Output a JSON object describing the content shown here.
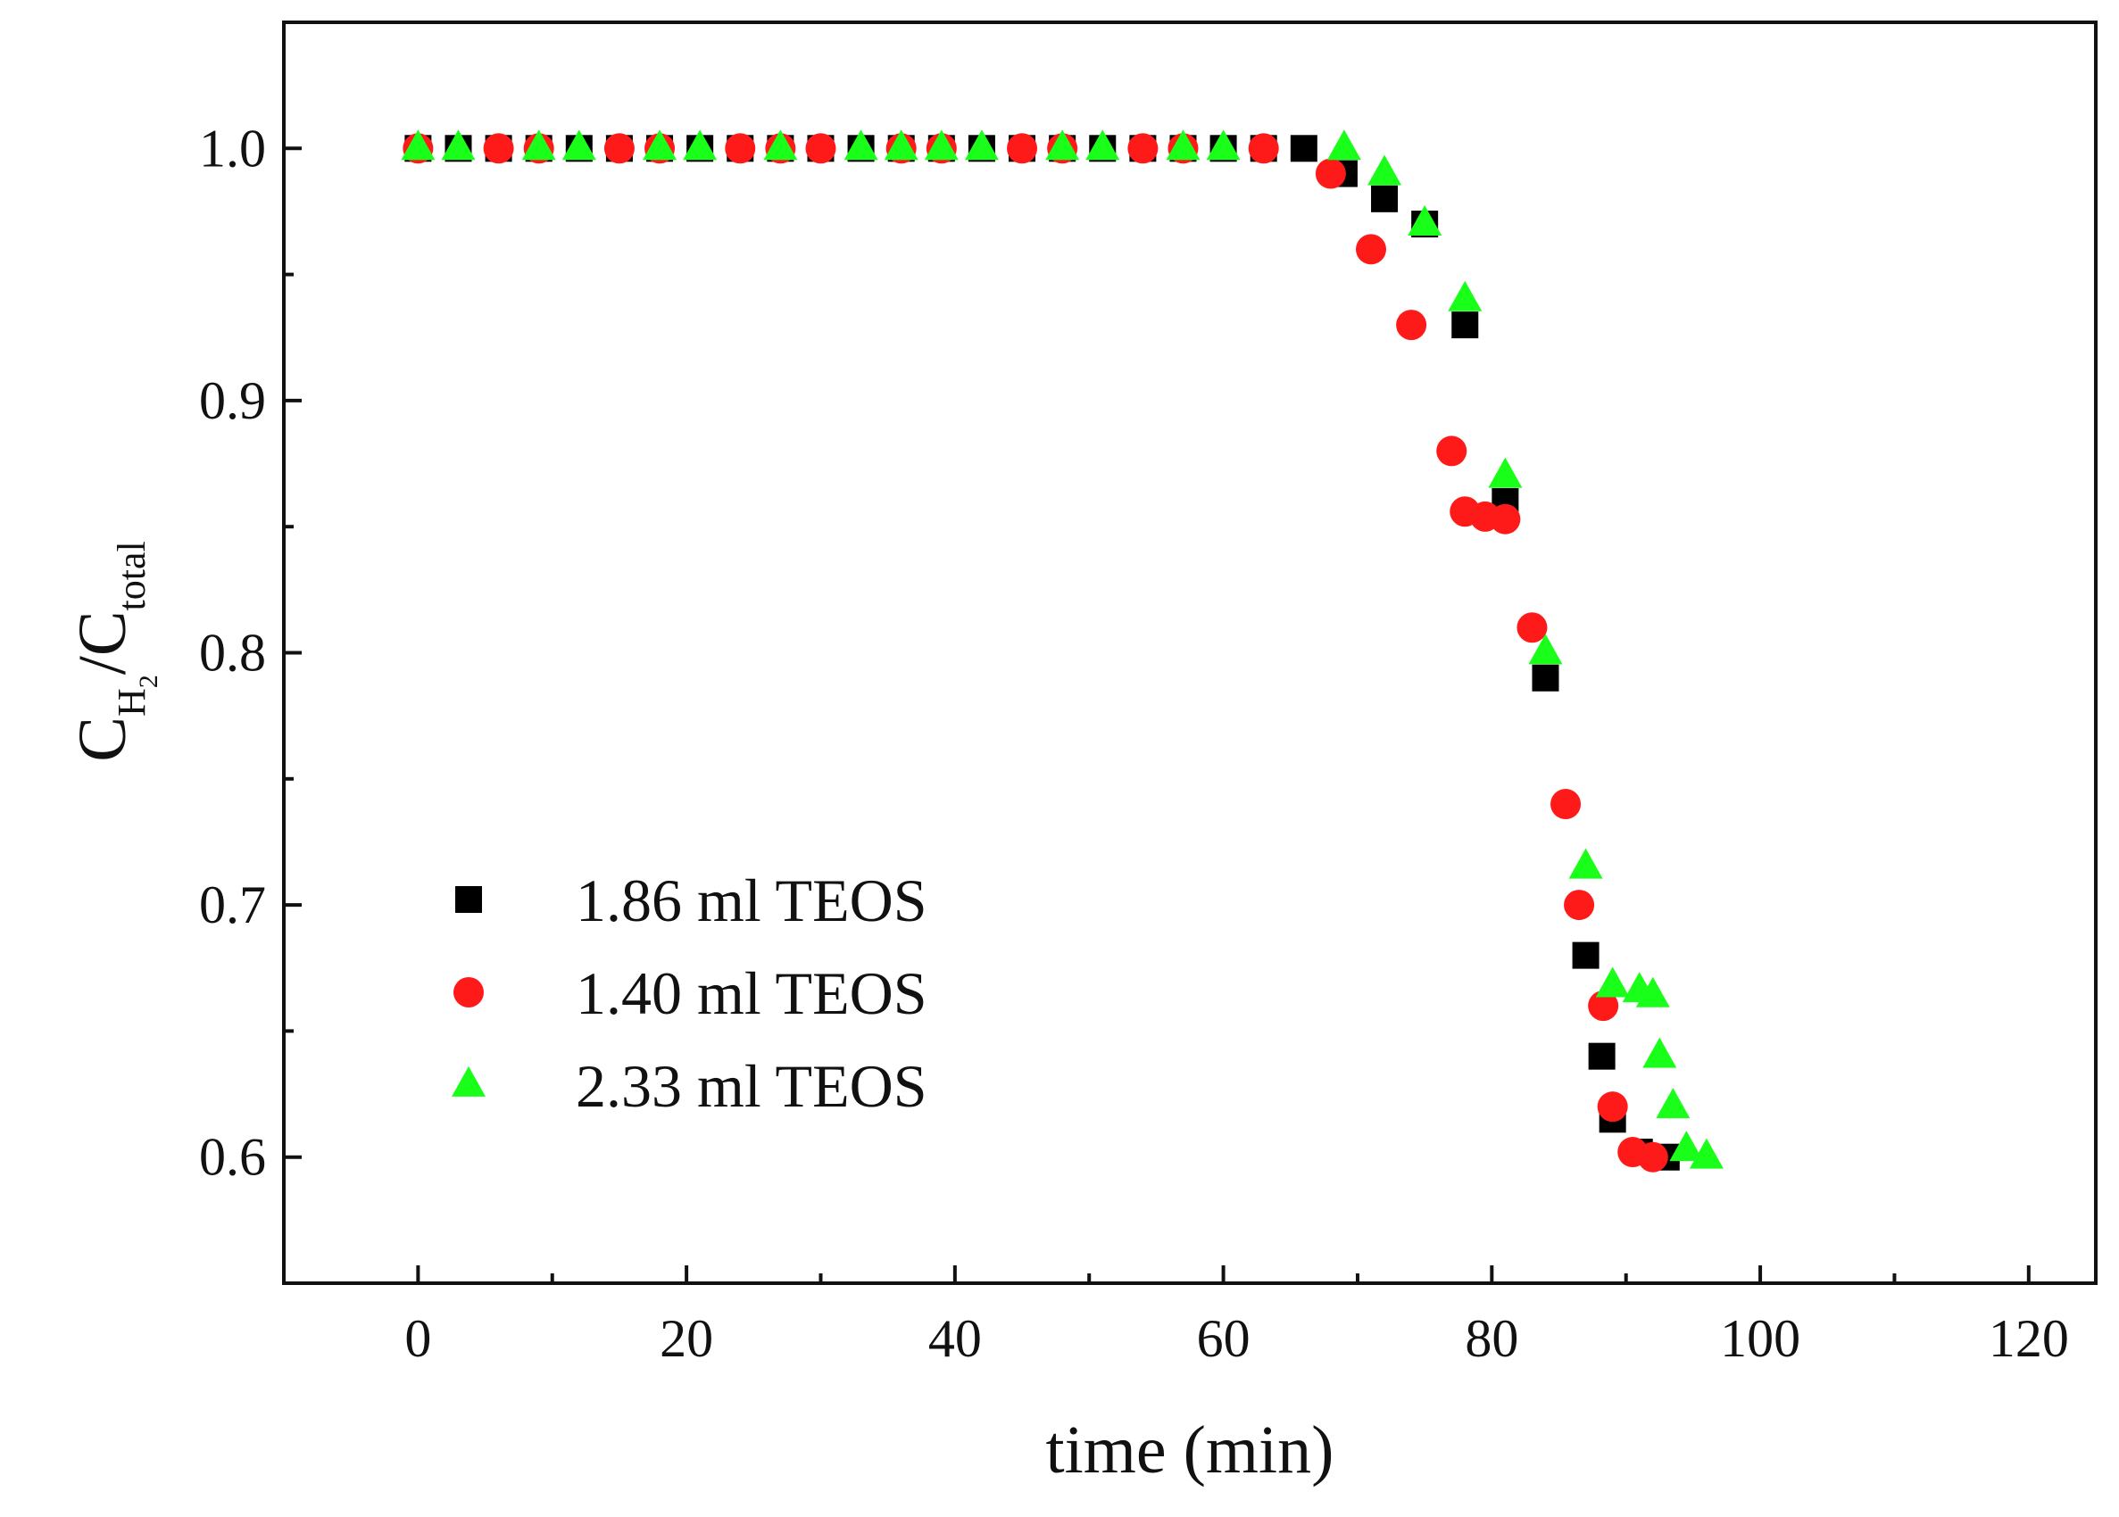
{
  "chart_data": {
    "type": "scatter",
    "xlabel": "time (min)",
    "ylabel": {
      "main": "C",
      "sub1": "H",
      "sub2": "2",
      "sep": "/C",
      "sub3": "total"
    },
    "xlim": [
      -10,
      125
    ],
    "ylim": [
      0.55,
      1.05
    ],
    "xticks": [
      0,
      20,
      40,
      60,
      80,
      100,
      120
    ],
    "yticks": [
      0.6,
      0.7,
      0.8,
      0.9,
      1.0
    ],
    "xtick_labels": [
      "0",
      "20",
      "40",
      "60",
      "80",
      "100",
      "120"
    ],
    "ytick_labels": [
      "0.6",
      "0.7",
      "0.8",
      "0.9",
      "1.0"
    ],
    "legend_position": "lower-left",
    "grid": false,
    "series": [
      {
        "name": "1.86 ml TEOS",
        "marker": "square",
        "color": "#000000",
        "points": [
          [
            0,
            1.0
          ],
          [
            3,
            1.0
          ],
          [
            6,
            1.0
          ],
          [
            9,
            1.0
          ],
          [
            12,
            1.0
          ],
          [
            15,
            1.0
          ],
          [
            18,
            1.0
          ],
          [
            21,
            1.0
          ],
          [
            24,
            1.0
          ],
          [
            27,
            1.0
          ],
          [
            30,
            1.0
          ],
          [
            33,
            1.0
          ],
          [
            36,
            1.0
          ],
          [
            39,
            1.0
          ],
          [
            42,
            1.0
          ],
          [
            45,
            1.0
          ],
          [
            48,
            1.0
          ],
          [
            51,
            1.0
          ],
          [
            54,
            1.0
          ],
          [
            57,
            1.0
          ],
          [
            60,
            1.0
          ],
          [
            63,
            1.0
          ],
          [
            66,
            1.0
          ],
          [
            69,
            0.99
          ],
          [
            72,
            0.98
          ],
          [
            75,
            0.97
          ],
          [
            78,
            0.93
          ],
          [
            81,
            0.86
          ],
          [
            84,
            0.79
          ],
          [
            87,
            0.68
          ],
          [
            88.2,
            0.64
          ],
          [
            89,
            0.615
          ],
          [
            91,
            0.602
          ],
          [
            93,
            0.6
          ]
        ]
      },
      {
        "name": "1.40 ml TEOS",
        "marker": "circle",
        "color": "#ff1a1a",
        "points": [
          [
            0,
            1.0
          ],
          [
            6,
            1.0
          ],
          [
            9,
            1.0
          ],
          [
            15,
            1.0
          ],
          [
            18,
            1.0
          ],
          [
            24,
            1.0
          ],
          [
            27,
            1.0
          ],
          [
            30,
            1.0
          ],
          [
            36,
            1.0
          ],
          [
            39,
            1.0
          ],
          [
            45,
            1.0
          ],
          [
            48,
            1.0
          ],
          [
            54,
            1.0
          ],
          [
            57,
            1.0
          ],
          [
            63,
            1.0
          ],
          [
            68,
            0.99
          ],
          [
            71,
            0.96
          ],
          [
            74,
            0.93
          ],
          [
            77,
            0.88
          ],
          [
            78,
            0.856
          ],
          [
            79.5,
            0.854
          ],
          [
            81,
            0.853
          ],
          [
            83,
            0.81
          ],
          [
            85.5,
            0.74
          ],
          [
            86.5,
            0.7
          ],
          [
            88.3,
            0.66
          ],
          [
            89,
            0.62
          ],
          [
            90.5,
            0.602
          ],
          [
            92,
            0.6
          ]
        ]
      },
      {
        "name": "2.33 ml TEOS",
        "marker": "triangle",
        "color": "#1aff1a",
        "points": [
          [
            0,
            1.0
          ],
          [
            3,
            1.0
          ],
          [
            9,
            1.0
          ],
          [
            12,
            1.0
          ],
          [
            18,
            1.0
          ],
          [
            21,
            1.0
          ],
          [
            27,
            1.0
          ],
          [
            33,
            1.0
          ],
          [
            36,
            1.0
          ],
          [
            39,
            1.0
          ],
          [
            42,
            1.0
          ],
          [
            48,
            1.0
          ],
          [
            51,
            1.0
          ],
          [
            57,
            1.0
          ],
          [
            60,
            1.0
          ],
          [
            69,
            1.0
          ],
          [
            72,
            0.99
          ],
          [
            75,
            0.97
          ],
          [
            78,
            0.94
          ],
          [
            81,
            0.87
          ],
          [
            84,
            0.8
          ],
          [
            87,
            0.715
          ],
          [
            89,
            0.668
          ],
          [
            91,
            0.666
          ],
          [
            92,
            0.664
          ],
          [
            92.5,
            0.64
          ],
          [
            93.5,
            0.62
          ],
          [
            94.5,
            0.603
          ],
          [
            96,
            0.6
          ]
        ]
      }
    ]
  }
}
